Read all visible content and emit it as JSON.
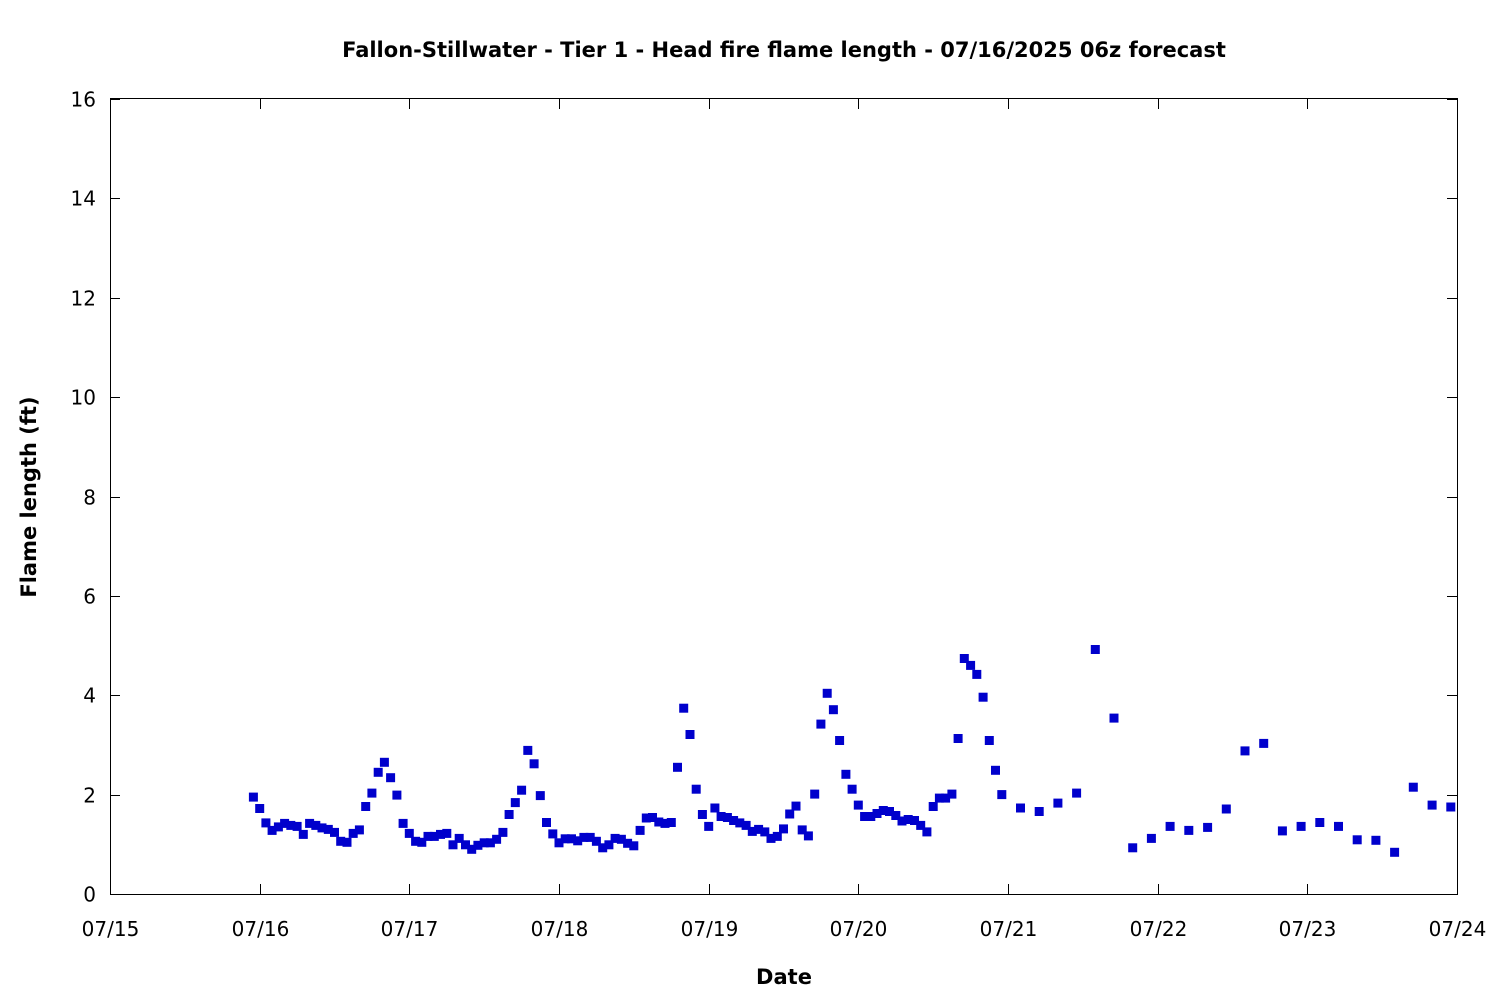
{
  "chart_data": {
    "type": "scatter",
    "title": "Fallon-Stillwater - Tier 1 - Head fire flame length - 07/16/2025 06z forecast",
    "xlabel": "Date",
    "ylabel": "Flame length (ft)",
    "xlim": [
      "07/15",
      "07/24"
    ],
    "ylim": [
      0,
      16
    ],
    "grid": false,
    "legend": "none",
    "marker_color": "#0000cc",
    "x_ticks": [
      "07/15",
      "07/16",
      "07/17",
      "07/18",
      "07/19",
      "07/20",
      "07/21",
      "07/22",
      "07/23",
      "07/24"
    ],
    "y_ticks": [
      "0",
      "2",
      "4",
      "6",
      "8",
      "10",
      "12",
      "14",
      "16"
    ],
    "series": [
      {
        "x": [
          "07/15 23:00",
          "07/16 00:00",
          "07/16 01:00",
          "07/16 02:00",
          "07/16 03:00",
          "07/16 04:00",
          "07/16 05:00",
          "07/16 06:00",
          "07/16 07:00",
          "07/16 08:00",
          "07/16 09:00",
          "07/16 10:00",
          "07/16 11:00",
          "07/16 12:00",
          "07/16 13:00",
          "07/16 14:00",
          "07/16 15:00",
          "07/16 16:00",
          "07/16 17:00",
          "07/16 18:00",
          "07/16 19:00",
          "07/16 20:00",
          "07/16 21:00",
          "07/16 22:00",
          "07/16 23:00",
          "07/17 00:00",
          "07/17 01:00",
          "07/17 02:00",
          "07/17 03:00",
          "07/17 04:00",
          "07/17 05:00",
          "07/17 06:00",
          "07/17 07:00",
          "07/17 08:00",
          "07/17 09:00",
          "07/17 10:00",
          "07/17 11:00",
          "07/17 12:00",
          "07/17 13:00",
          "07/17 14:00",
          "07/17 15:00",
          "07/17 16:00",
          "07/17 17:00",
          "07/17 18:00",
          "07/17 19:00",
          "07/17 20:00",
          "07/17 21:00",
          "07/17 22:00",
          "07/17 23:00",
          "07/18 00:00",
          "07/18 01:00",
          "07/18 02:00",
          "07/18 03:00",
          "07/18 04:00",
          "07/18 05:00",
          "07/18 06:00",
          "07/18 07:00",
          "07/18 08:00",
          "07/18 09:00",
          "07/18 10:00",
          "07/18 11:00",
          "07/18 12:00",
          "07/18 13:00",
          "07/18 14:00",
          "07/18 15:00",
          "07/18 16:00",
          "07/18 17:00",
          "07/18 18:00",
          "07/18 19:00",
          "07/18 20:00",
          "07/18 21:00",
          "07/18 22:00",
          "07/18 23:00",
          "07/19 00:00",
          "07/19 01:00",
          "07/19 02:00",
          "07/19 03:00",
          "07/19 04:00",
          "07/19 05:00",
          "07/19 06:00",
          "07/19 07:00",
          "07/19 08:00",
          "07/19 09:00",
          "07/19 10:00",
          "07/19 11:00",
          "07/19 12:00",
          "07/19 13:00",
          "07/19 14:00",
          "07/19 15:00",
          "07/19 16:00",
          "07/19 17:00",
          "07/19 18:00",
          "07/19 19:00",
          "07/19 20:00",
          "07/19 21:00",
          "07/19 22:00",
          "07/19 23:00",
          "07/20 00:00",
          "07/20 01:00",
          "07/20 02:00",
          "07/20 03:00",
          "07/20 04:00",
          "07/20 05:00",
          "07/20 06:00",
          "07/20 07:00",
          "07/20 08:00",
          "07/20 09:00",
          "07/20 10:00",
          "07/20 11:00",
          "07/20 12:00",
          "07/20 13:00",
          "07/20 14:00",
          "07/20 15:00",
          "07/20 16:00",
          "07/20 17:00",
          "07/20 18:00",
          "07/20 19:00",
          "07/20 20:00",
          "07/20 21:00",
          "07/20 22:00",
          "07/20 23:00",
          "07/21 02:00",
          "07/21 05:00",
          "07/21 08:00",
          "07/21 11:00",
          "07/21 14:00",
          "07/21 17:00",
          "07/21 20:00",
          "07/21 23:00",
          "07/22 02:00",
          "07/22 05:00",
          "07/22 08:00",
          "07/22 11:00",
          "07/22 14:00",
          "07/22 17:00",
          "07/22 20:00",
          "07/22 23:00",
          "07/23 02:00",
          "07/23 05:00",
          "07/23 08:00",
          "07/23 11:00",
          "07/23 14:00",
          "07/23 17:00",
          "07/23 20:00",
          "07/23 23:00"
        ],
        "y": [
          1.95,
          1.72,
          1.43,
          1.28,
          1.35,
          1.42,
          1.38,
          1.36,
          1.2,
          1.42,
          1.38,
          1.33,
          1.3,
          1.24,
          1.06,
          1.04,
          1.22,
          1.29,
          1.76,
          2.03,
          2.45,
          2.65,
          2.34,
          1.99,
          1.42,
          1.22,
          1.06,
          1.04,
          1.16,
          1.16,
          1.2,
          1.22,
          0.99,
          1.12,
          0.99,
          0.9,
          0.98,
          1.03,
          1.03,
          1.1,
          1.24,
          1.6,
          1.84,
          2.09,
          2.89,
          2.62,
          1.98,
          1.44,
          1.21,
          1.03,
          1.11,
          1.11,
          1.07,
          1.14,
          1.14,
          1.06,
          0.93,
          0.99,
          1.12,
          1.1,
          1.02,
          0.97,
          1.28,
          1.53,
          1.54,
          1.45,
          1.42,
          1.44,
          2.55,
          3.74,
          3.21,
          2.11,
          1.6,
          1.36,
          1.73,
          1.56,
          1.54,
          1.48,
          1.43,
          1.38,
          1.26,
          1.3,
          1.25,
          1.12,
          1.16,
          1.31,
          1.61,
          1.77,
          1.29,
          1.17,
          2.01,
          3.42,
          4.04,
          3.71,
          3.09,
          2.41,
          2.11,
          1.79,
          1.56,
          1.56,
          1.62,
          1.68,
          1.66,
          1.58,
          1.47,
          1.5,
          1.48,
          1.38,
          1.25,
          1.76,
          1.93,
          1.93,
          2.01,
          3.13,
          4.74,
          4.6,
          4.42,
          3.96,
          3.09,
          2.49,
          2.0,
          1.73,
          1.66,
          1.83,
          2.03,
          4.92,
          3.54,
          0.93,
          1.12,
          1.36,
          1.28,
          1.34,
          1.71,
          2.88,
          3.03,
          1.27,
          1.36,
          1.44,
          1.36,
          1.09,
          1.08,
          0.84,
          2.15,
          1.79,
          1.75
        ]
      }
    ]
  }
}
